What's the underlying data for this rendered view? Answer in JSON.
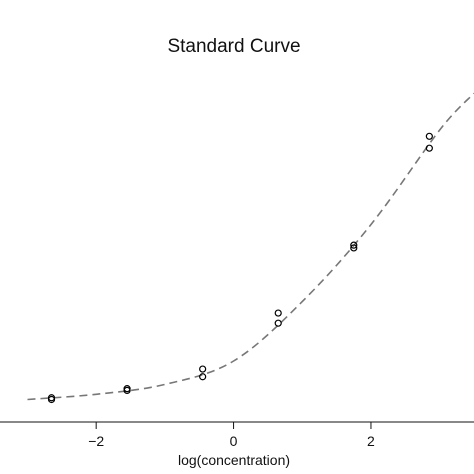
{
  "chart_data": {
    "type": "scatter",
    "title": "Standard Curve",
    "xlabel": "log(concentration)",
    "ylabel": "",
    "xlim": [
      -3.4,
      3.5
    ],
    "ylim": [
      0.0,
      1.0
    ],
    "x_ticks": [
      -2,
      0,
      2
    ],
    "x_tick_labels": [
      "−2",
      "0",
      "2"
    ],
    "grid": false,
    "series": [
      {
        "marker": "open-circle",
        "color": "#000000",
        "points": [
          {
            "x": -2.65,
            "y": 0.035
          },
          {
            "x": -2.65,
            "y": 0.03
          },
          {
            "x": -1.55,
            "y": 0.061
          },
          {
            "x": -1.55,
            "y": 0.056
          },
          {
            "x": -0.45,
            "y": 0.117
          },
          {
            "x": -0.45,
            "y": 0.095
          },
          {
            "x": 0.65,
            "y": 0.277
          },
          {
            "x": 0.65,
            "y": 0.248
          },
          {
            "x": 1.75,
            "y": 0.471
          },
          {
            "x": 1.75,
            "y": 0.463
          },
          {
            "x": 2.85,
            "y": 0.782
          },
          {
            "x": 2.85,
            "y": 0.748
          }
        ]
      },
      {
        "line_style": "dashed",
        "color": "#777777",
        "points": [
          {
            "x": -3.0,
            "y": 0.03
          },
          {
            "x": -2.0,
            "y": 0.045
          },
          {
            "x": -1.0,
            "y": 0.073
          },
          {
            "x": 0.0,
            "y": 0.14
          },
          {
            "x": 1.0,
            "y": 0.31
          },
          {
            "x": 2.0,
            "y": 0.53
          },
          {
            "x": 3.0,
            "y": 0.8
          },
          {
            "x": 3.5,
            "y": 0.905
          }
        ]
      }
    ]
  }
}
